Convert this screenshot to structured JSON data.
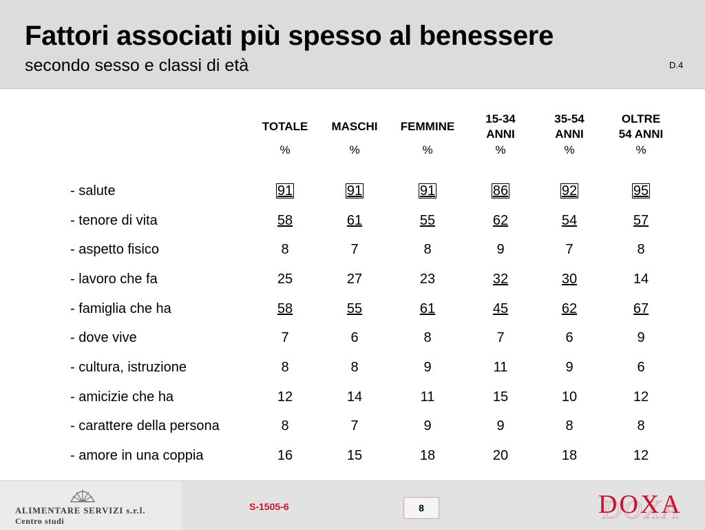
{
  "header": {
    "title": "Fattori associati più spesso al benessere",
    "subtitle": "secondo sesso e classi di età",
    "code": "D.4"
  },
  "table": {
    "columns": [
      {
        "line1": "TOTALE",
        "line2": "",
        "unit": "%"
      },
      {
        "line1": "MASCHI",
        "line2": "",
        "unit": "%"
      },
      {
        "line1": "FEMMINE",
        "line2": "",
        "unit": "%"
      },
      {
        "line1": "15-34",
        "line2": "ANNI",
        "unit": "%"
      },
      {
        "line1": "35-54",
        "line2": "ANNI",
        "unit": "%"
      },
      {
        "line1": "OLTRE",
        "line2": "54 ANNI",
        "unit": "%"
      }
    ],
    "rows": [
      {
        "label": "- salute",
        "values": [
          "91",
          "91",
          "91",
          "86",
          "92",
          "95"
        ],
        "style": [
          "box",
          "box",
          "box",
          "box",
          "box",
          "box"
        ]
      },
      {
        "label": "- tenore di vita",
        "values": [
          "58",
          "61",
          "55",
          "62",
          "54",
          "57"
        ],
        "style": [
          "u",
          "u",
          "u",
          "u",
          "u",
          "u"
        ]
      },
      {
        "label": "- aspetto fisico",
        "values": [
          "8",
          "7",
          "8",
          "9",
          "7",
          "8"
        ],
        "style": [
          "",
          "",
          "",
          "",
          "",
          ""
        ]
      },
      {
        "label": "- lavoro che fa",
        "values": [
          "25",
          "27",
          "23",
          "32",
          "30",
          "14"
        ],
        "style": [
          "",
          "",
          "",
          "u",
          "u",
          ""
        ]
      },
      {
        "label": "- famiglia che ha",
        "values": [
          "58",
          "55",
          "61",
          "45",
          "62",
          "67"
        ],
        "style": [
          "u",
          "u",
          "u",
          "u",
          "u",
          "u"
        ]
      },
      {
        "label": "- dove vive",
        "values": [
          "7",
          "6",
          "8",
          "7",
          "6",
          "9"
        ],
        "style": [
          "",
          "",
          "",
          "",
          "",
          ""
        ]
      },
      {
        "label": "- cultura, istruzione",
        "values": [
          "8",
          "8",
          "9",
          "11",
          "9",
          "6"
        ],
        "style": [
          "",
          "",
          "",
          "",
          "",
          ""
        ]
      },
      {
        "label": "- amicizie che ha",
        "values": [
          "12",
          "14",
          "11",
          "15",
          "10",
          "12"
        ],
        "style": [
          "",
          "",
          "",
          "",
          "",
          ""
        ]
      },
      {
        "label": "- carattere della persona",
        "values": [
          "8",
          "7",
          "9",
          "9",
          "8",
          "8"
        ],
        "style": [
          "",
          "",
          "",
          "",
          "",
          ""
        ]
      },
      {
        "label": "- amore in una coppia",
        "values": [
          "16",
          "15",
          "18",
          "20",
          "18",
          "12"
        ],
        "style": [
          "",
          "",
          "",
          "",
          "",
          ""
        ]
      }
    ]
  },
  "footer": {
    "company_name": "ALIMENTARE SERVIZI s.r.l.",
    "company_dept": "Centro studi",
    "survey_code": "S-1505-6",
    "page_number": "8",
    "brand": "DOXA",
    "brand_color": "#c8102e",
    "survey_code_color": "#d0112b",
    "logo_icon": "shell-emblem-icon"
  }
}
